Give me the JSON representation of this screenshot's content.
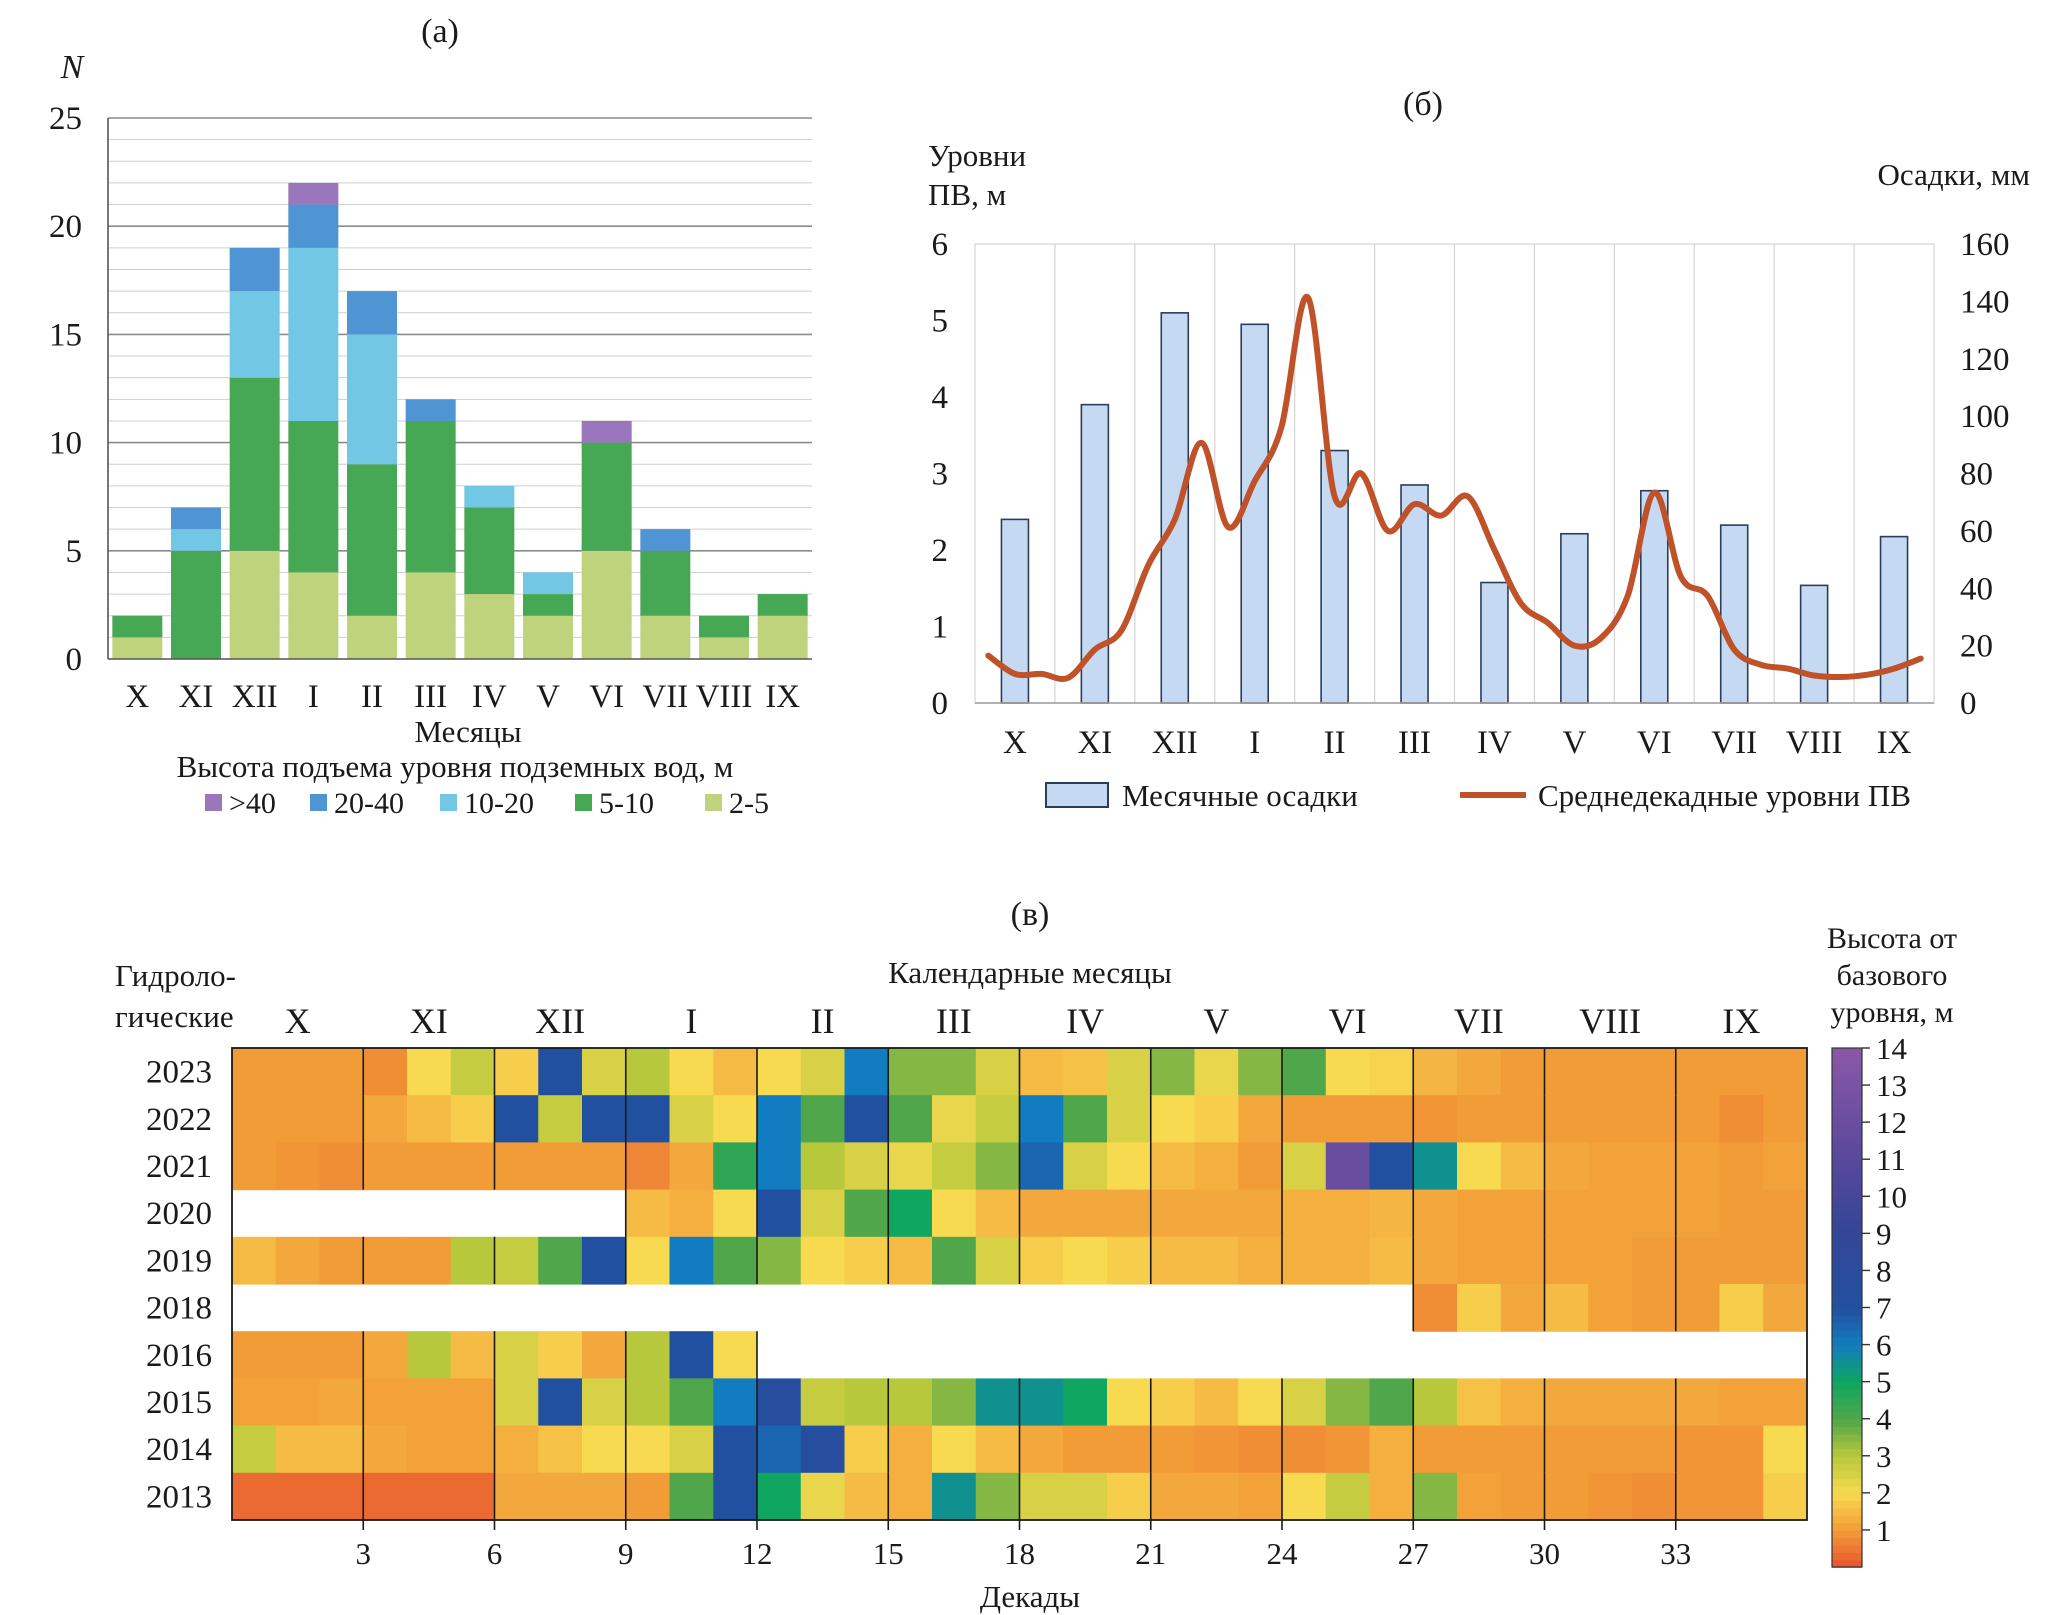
{
  "chart_data": [
    {
      "type": "bar",
      "panel_label": "(а)",
      "ylabel": "N",
      "xlabel": "Месяцы",
      "ylim": [
        0,
        25
      ],
      "yticks": [
        0,
        5,
        10,
        15,
        20,
        25
      ],
      "categories": [
        "X",
        "XI",
        "XII",
        "I",
        "II",
        "III",
        "IV",
        "V",
        "VI",
        "VII",
        "VIII",
        "IX"
      ],
      "legend_title": "Высота подъема уровня подземных вод, м",
      "series": [
        {
          "name": "2-5",
          "color": "#bfd27c",
          "values": [
            1,
            0,
            5,
            4,
            2,
            4,
            3,
            2,
            5,
            2,
            1,
            2
          ]
        },
        {
          "name": "5-10",
          "color": "#46a854",
          "values": [
            1,
            5,
            8,
            7,
            7,
            7,
            4,
            1,
            5,
            3,
            1,
            1
          ]
        },
        {
          "name": "10-20",
          "color": "#72c7e4",
          "values": [
            0,
            1,
            4,
            8,
            6,
            0,
            1,
            1,
            0,
            0,
            0,
            0
          ]
        },
        {
          "name": "20-40",
          "color": "#4f94d3",
          "values": [
            0,
            1,
            2,
            2,
            2,
            1,
            0,
            0,
            0,
            1,
            0,
            0
          ]
        },
        {
          "name": ">40",
          "color": "#9a77bd",
          "values": [
            0,
            0,
            0,
            1,
            0,
            0,
            0,
            0,
            1,
            0,
            0,
            0
          ]
        }
      ]
    },
    {
      "type": "bar+line",
      "panel_label": "(б)",
      "ylabel_left": "Уровни ПВ, м",
      "ylabel_left_lines": [
        "Уровни",
        "ПВ, м"
      ],
      "ylabel_right": "Осадки, мм",
      "ylim_left": [
        0,
        6
      ],
      "yticks_left": [
        0,
        1,
        2,
        3,
        4,
        5,
        6
      ],
      "ylim_right": [
        0,
        160
      ],
      "yticks_right": [
        0,
        20,
        40,
        60,
        80,
        100,
        120,
        140,
        160
      ],
      "categories": [
        "X",
        "XI",
        "XII",
        "I",
        "II",
        "III",
        "IV",
        "V",
        "VI",
        "VII",
        "VIII",
        "IX"
      ],
      "bars": {
        "name": "Месячные осадки",
        "color": "#c5daf2",
        "axis": "right",
        "values": [
          64,
          104,
          136,
          132,
          88,
          76,
          42,
          59,
          74,
          62,
          41,
          58
        ]
      },
      "line": {
        "name": "Среднедекадные уровни ПВ",
        "color": "#c0522a",
        "axis": "left",
        "x": [
          0.5,
          1.5,
          2.5,
          3.5,
          4.5,
          5.5,
          6.5,
          7.5,
          8.5,
          9.5,
          10.5,
          11.5,
          12.5,
          13.5,
          14.5,
          15.5,
          16.5,
          17.5,
          18.5,
          19.5,
          20.5,
          21.5,
          22.5,
          23.5,
          24.5,
          25.5,
          26.5,
          27.5,
          28.5,
          29.5,
          30.5,
          31.5,
          32.5,
          33.5,
          34.5,
          35.5
        ],
        "values": [
          0.62,
          0.38,
          0.38,
          0.33,
          0.7,
          0.95,
          1.8,
          2.4,
          3.4,
          2.3,
          2.9,
          3.6,
          5.3,
          2.7,
          3.0,
          2.25,
          2.6,
          2.45,
          2.7,
          2.0,
          1.3,
          1.05,
          0.75,
          0.85,
          1.4,
          2.75,
          1.65,
          1.4,
          0.7,
          0.5,
          0.45,
          0.36,
          0.34,
          0.37,
          0.45,
          0.58
        ]
      }
    },
    {
      "type": "heatmap",
      "panel_label": "(в)",
      "title": "Календарные месяцы",
      "xlabel": "Декады",
      "ylabel_lines": [
        "Гидроло-",
        "гические"
      ],
      "colorbar_title": [
        "Высота от",
        "базового",
        "уровня, м"
      ],
      "colorbar_range": [
        0,
        14
      ],
      "colorbar_ticks": [
        1,
        2,
        3,
        4,
        5,
        6,
        7,
        8,
        9,
        10,
        11,
        12,
        13,
        14
      ],
      "months": [
        "X",
        "XI",
        "XII",
        "I",
        "II",
        "III",
        "IV",
        "V",
        "VI",
        "VII",
        "VIII",
        "IX"
      ],
      "xticks": [
        3,
        6,
        9,
        12,
        15,
        18,
        21,
        24,
        27,
        30,
        33
      ],
      "decades_count": 36,
      "years": [
        "2023",
        "2022",
        "2021",
        "2020",
        "2019",
        "2018",
        "2016",
        "2015",
        "2014",
        "2013"
      ],
      "values": [
        [
          1.0,
          1.0,
          1.0,
          0.8,
          2.0,
          2.8,
          1.8,
          7.0,
          2.5,
          3.0,
          2.0,
          1.5,
          2.0,
          2.5,
          6.0,
          3.5,
          3.5,
          2.5,
          1.5,
          1.6,
          2.5,
          3.5,
          2.2,
          3.5,
          4.0,
          2.0,
          1.9,
          1.4,
          1.2,
          1.0,
          1.0,
          1.0,
          1.0,
          1.0,
          1.0,
          1.0
        ],
        [
          1.0,
          1.0,
          1.0,
          1.2,
          1.5,
          1.8,
          7.0,
          2.8,
          7.0,
          7.0,
          2.5,
          2.0,
          6.0,
          4.0,
          7.0,
          4.0,
          2.2,
          2.8,
          6.0,
          4.0,
          2.5,
          2.0,
          1.8,
          1.2,
          1.0,
          1.0,
          1.0,
          0.9,
          1.0,
          1.0,
          1.0,
          1.0,
          1.0,
          1.0,
          0.8,
          1.0
        ],
        [
          1.0,
          0.9,
          0.8,
          1.0,
          1.0,
          1.0,
          1.0,
          1.0,
          1.0,
          0.7,
          1.2,
          4.5,
          6.0,
          3.0,
          2.5,
          2.2,
          2.8,
          3.5,
          6.5,
          2.5,
          2.0,
          1.5,
          1.3,
          1.0,
          2.5,
          12.0,
          7.0,
          5.5,
          2.0,
          1.5,
          1.2,
          1.1,
          1.1,
          1.1,
          1.0,
          1.1
        ],
        [
          null,
          null,
          null,
          null,
          null,
          null,
          null,
          null,
          null,
          1.5,
          1.3,
          2.0,
          7.0,
          2.5,
          4.0,
          5.0,
          2.0,
          1.5,
          1.2,
          1.2,
          1.2,
          1.2,
          1.2,
          1.2,
          1.3,
          1.3,
          1.4,
          1.2,
          1.1,
          1.1,
          1.1,
          1.1,
          1.1,
          1.1,
          1.0,
          1.0
        ],
        [
          1.5,
          1.2,
          1.0,
          1.0,
          1.0,
          3.0,
          2.8,
          4.0,
          7.0,
          2.0,
          6.0,
          4.0,
          3.5,
          2.0,
          1.8,
          1.5,
          4.0,
          2.5,
          1.8,
          2.0,
          1.8,
          1.5,
          1.5,
          1.3,
          1.3,
          1.3,
          1.5,
          1.2,
          1.1,
          1.1,
          1.1,
          1.1,
          1.0,
          1.0,
          1.0,
          1.0
        ],
        [
          null,
          null,
          null,
          null,
          null,
          null,
          null,
          null,
          null,
          null,
          null,
          null,
          null,
          null,
          null,
          null,
          null,
          null,
          null,
          null,
          null,
          null,
          null,
          null,
          null,
          null,
          null,
          0.8,
          1.8,
          1.2,
          1.5,
          1.1,
          1.0,
          1.0,
          1.8,
          1.2
        ],
        [
          1.0,
          1.0,
          1.0,
          1.2,
          3.0,
          1.5,
          2.5,
          1.8,
          1.2,
          3.0,
          7.0,
          2.0,
          null,
          null,
          null,
          null,
          null,
          null,
          null,
          null,
          null,
          null,
          null,
          null,
          null,
          null,
          null,
          null,
          null,
          null,
          null,
          null,
          null,
          null,
          null,
          null
        ],
        [
          1.1,
          1.1,
          1.2,
          1.1,
          1.1,
          1.1,
          2.5,
          7.0,
          2.5,
          3.0,
          4.0,
          6.0,
          7.5,
          2.8,
          3.0,
          3.0,
          3.5,
          5.5,
          5.5,
          5.0,
          2.0,
          1.8,
          1.5,
          2.0,
          2.5,
          3.5,
          4.0,
          3.0,
          1.6,
          1.3,
          1.2,
          1.2,
          1.2,
          1.2,
          1.1,
          1.1
        ],
        [
          2.8,
          1.5,
          1.5,
          1.2,
          1.1,
          1.1,
          1.3,
          1.6,
          2.0,
          2.0,
          2.5,
          7.0,
          6.5,
          7.5,
          1.8,
          1.3,
          2.0,
          1.5,
          1.2,
          1.0,
          1.0,
          1.0,
          0.9,
          0.8,
          0.8,
          0.9,
          1.3,
          1.0,
          1.0,
          1.0,
          1.0,
          1.0,
          1.0,
          0.9,
          0.9,
          2.0
        ],
        [
          0.3,
          0.3,
          0.3,
          0.3,
          0.3,
          0.3,
          1.2,
          1.2,
          1.2,
          1.0,
          4.0,
          7.0,
          5.0,
          2.2,
          1.5,
          1.3,
          5.5,
          3.5,
          2.5,
          2.5,
          1.8,
          1.2,
          1.2,
          1.1,
          2.0,
          2.8,
          1.3,
          3.5,
          1.1,
          1.0,
          1.0,
          0.9,
          0.8,
          0.9,
          0.9,
          1.8
        ]
      ]
    }
  ]
}
